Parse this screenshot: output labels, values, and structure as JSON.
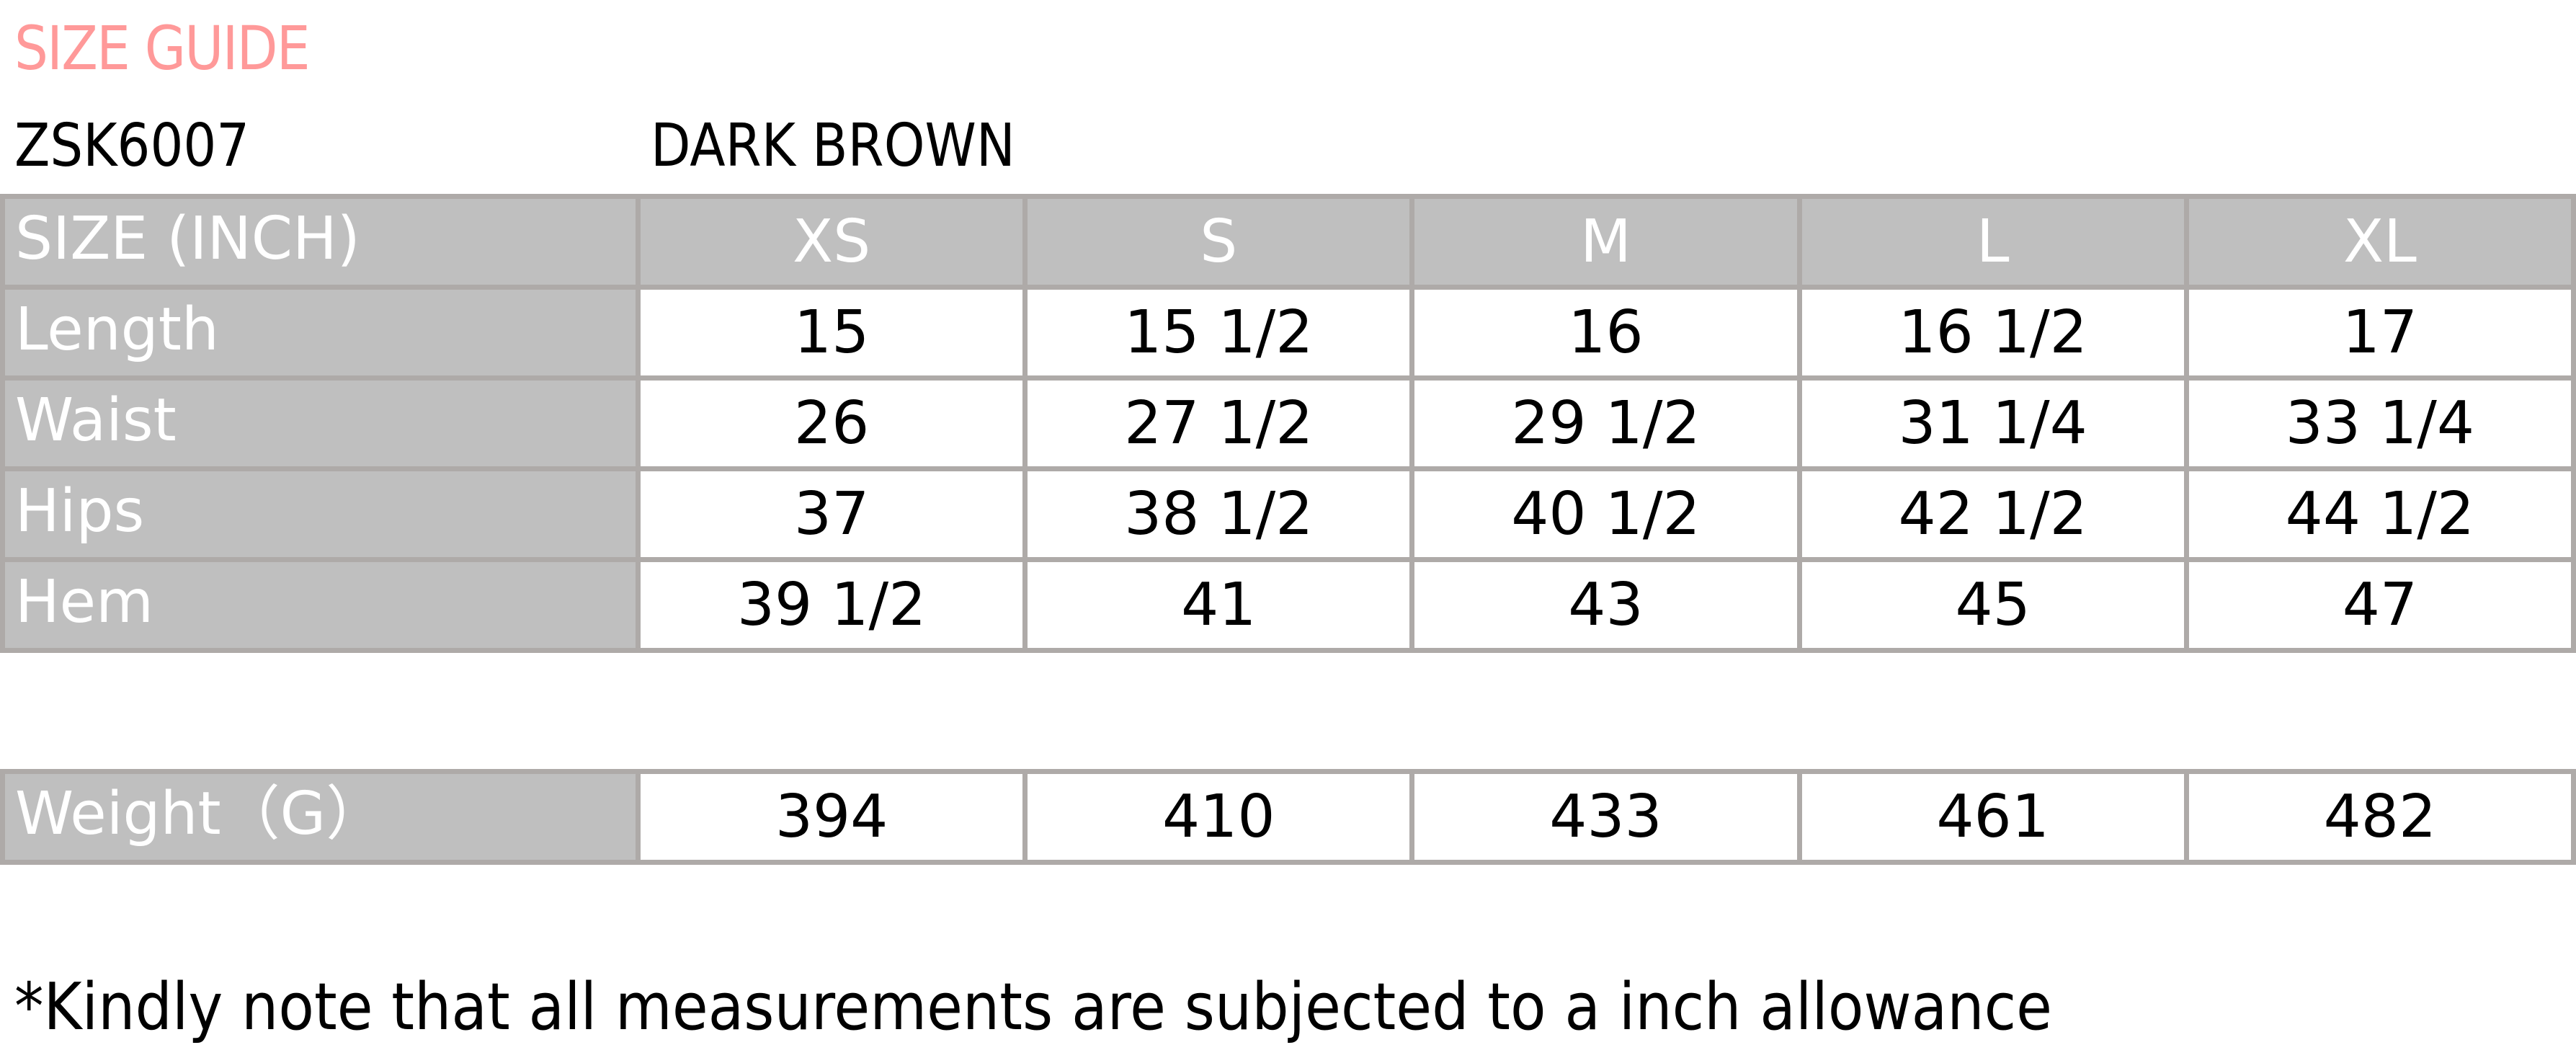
{
  "title": "SIZE GUIDE",
  "product_code": "ZSK6007",
  "color_name": "DARK BROWN",
  "colors": {
    "title": "#ff9999",
    "header_fill": "#bfbfbf",
    "border": "#aeaaa8"
  },
  "table": {
    "header_label": "SIZE (INCH)",
    "sizes": [
      "XS",
      "S",
      "M",
      "L",
      "XL"
    ],
    "rows": [
      {
        "label": "Length",
        "values": [
          "15",
          "15 1/2",
          "16",
          "16 1/2",
          "17"
        ]
      },
      {
        "label": "Waist",
        "values": [
          "26",
          "27 1/2",
          "29 1/2",
          "31 1/4",
          "33 1/4"
        ]
      },
      {
        "label": "Hips",
        "values": [
          "37",
          "38 1/2",
          "40 1/2",
          "42 1/2",
          "44 1/2"
        ]
      },
      {
        "label": "Hem",
        "values": [
          "39 1/2",
          "41",
          "43",
          "45",
          "47"
        ]
      }
    ]
  },
  "weight": {
    "label": "Weight（G）",
    "values": [
      "394",
      "410",
      "433",
      "461",
      "482"
    ]
  },
  "note": "*Kindly note that all measurements are subjected to a inch allowance"
}
